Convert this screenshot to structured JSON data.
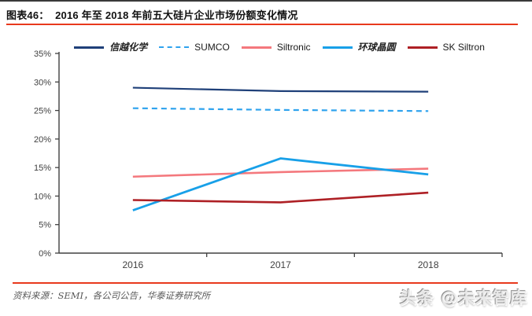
{
  "header": {
    "title": "图表46：  2016 年至 2018 年前五大硅片企业市场份额变化情况"
  },
  "footer": {
    "source": "资料来源：SEMI，各公司公告，华泰证券研究所"
  },
  "watermark": {
    "text": "头条 @未来智库"
  },
  "colors": {
    "accent_red": "#e8391d",
    "axis": "#404040",
    "tick_text": "#404040",
    "source_text": "#595959"
  },
  "chart_data": {
    "type": "line",
    "title": "2016 年至 2018 年前五大硅片企业市场份额变化情况",
    "categories": [
      "2016",
      "2017",
      "2018"
    ],
    "series": [
      {
        "name": "信越化学",
        "values": [
          29.0,
          28.4,
          28.3
        ],
        "color": "#1f4079",
        "dashed": false,
        "width": 2.2
      },
      {
        "name": "SUMCO",
        "values": [
          25.4,
          25.1,
          24.9
        ],
        "color": "#2fa3ee",
        "dashed": true,
        "width": 2.2
      },
      {
        "name": "Siltronic",
        "values": [
          13.4,
          14.2,
          14.8
        ],
        "color": "#f4787d",
        "dashed": false,
        "width": 2.6
      },
      {
        "name": "环球晶圆",
        "values": [
          7.5,
          16.6,
          13.8
        ],
        "color": "#18a0e8",
        "dashed": false,
        "width": 2.8
      },
      {
        "name": "SK Siltron",
        "values": [
          9.3,
          8.9,
          10.6
        ],
        "color": "#ae2025",
        "dashed": false,
        "width": 2.6
      }
    ],
    "xlabel": "",
    "ylabel": "",
    "ylim": [
      0,
      35
    ],
    "ytick_step": 5,
    "ytick_labels": [
      "0%",
      "5%",
      "10%",
      "15%",
      "20%",
      "25%",
      "30%",
      "35%"
    ],
    "grid": false,
    "legend_position": "top"
  }
}
